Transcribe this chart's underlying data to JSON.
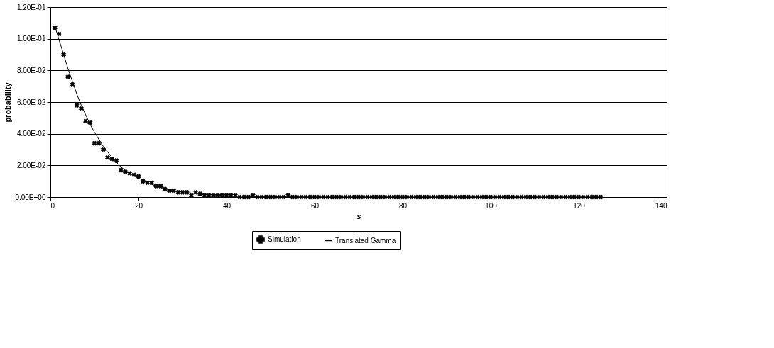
{
  "chart_data": {
    "type": "scatter",
    "xlabel": "s",
    "ylabel": "probability",
    "xlim": [
      0,
      140
    ],
    "xticks": [
      0,
      20,
      40,
      60,
      80,
      100,
      120,
      140
    ],
    "ylim": [
      0,
      0.12
    ],
    "yticks": [
      {
        "value": 0,
        "label": "0.00E+00"
      },
      {
        "value": 0.02,
        "label": "2.00E-02"
      },
      {
        "value": 0.04,
        "label": "4.00E-02"
      },
      {
        "value": 0.06,
        "label": "6.00E-02"
      },
      {
        "value": 0.08,
        "label": "8.00E-02"
      },
      {
        "value": 0.1,
        "label": "1.00E-01"
      },
      {
        "value": 0.12,
        "label": "1.20E-01"
      }
    ],
    "grid": "y",
    "legend": "bottom",
    "series": [
      {
        "name": "Simulation",
        "marker": "cross",
        "color": "#000000",
        "x": [
          1,
          2,
          3,
          4,
          5,
          6,
          7,
          8,
          9,
          10,
          11,
          12,
          13,
          14,
          15,
          16,
          17,
          18,
          19,
          20,
          21,
          22,
          23,
          24,
          25,
          26,
          27,
          28,
          29,
          30,
          31,
          32,
          33,
          34,
          35,
          36,
          37,
          38,
          39,
          40,
          41,
          42,
          43,
          44,
          45,
          46,
          47,
          48,
          49,
          50,
          51,
          52,
          53,
          54,
          55,
          56,
          57,
          58,
          59,
          60,
          61,
          62,
          63,
          64,
          65,
          66,
          67,
          68,
          69,
          70,
          71,
          72,
          73,
          74,
          75,
          76,
          77,
          78,
          79,
          80,
          81,
          82,
          83,
          84,
          85,
          86,
          87,
          88,
          89,
          90,
          91,
          92,
          93,
          94,
          95,
          96,
          97,
          98,
          99,
          100,
          101,
          102,
          103,
          104,
          105,
          106,
          107,
          108,
          109,
          110,
          111,
          112,
          113,
          114,
          115,
          116,
          117,
          118,
          119,
          120,
          121,
          122,
          123,
          124,
          125
        ],
        "values": [
          0.107,
          0.103,
          0.09,
          0.076,
          0.071,
          0.058,
          0.056,
          0.048,
          0.047,
          0.034,
          0.034,
          0.03,
          0.025,
          0.024,
          0.023,
          0.017,
          0.016,
          0.015,
          0.014,
          0.013,
          0.01,
          0.009,
          0.009,
          0.007,
          0.007,
          0.005,
          0.004,
          0.004,
          0.003,
          0.003,
          0.003,
          0.001,
          0.003,
          0.002,
          0.001,
          0.001,
          0.001,
          0.001,
          0.001,
          0.001,
          0.001,
          0.001,
          0,
          0,
          0,
          0.001,
          0,
          0,
          0,
          0,
          0,
          0,
          0,
          0.001,
          0,
          0,
          0,
          0,
          0,
          0,
          0,
          0,
          0,
          0,
          0,
          0,
          0,
          0,
          0,
          0,
          0,
          0,
          0,
          0,
          0,
          0,
          0,
          0,
          0,
          0,
          0,
          0,
          0,
          0,
          0,
          0,
          0,
          0,
          0,
          0,
          0,
          0,
          0,
          0,
          0,
          0,
          0,
          0,
          0,
          0,
          0,
          0,
          0,
          0,
          0,
          0,
          0,
          0,
          0,
          0,
          0,
          0,
          0,
          0,
          0,
          0,
          0,
          0,
          0,
          0,
          0,
          0,
          0,
          0,
          0
        ]
      },
      {
        "name": "Translated Gamma",
        "type": "line",
        "marker": "none",
        "line_style": "solid",
        "color": "#000000",
        "x": [
          1,
          2,
          3,
          4,
          5,
          6,
          7,
          8,
          9,
          10,
          12,
          14,
          16,
          18,
          20,
          22,
          25,
          28,
          32,
          36,
          40,
          45,
          50,
          60,
          80,
          100,
          125
        ],
        "values": [
          0.108,
          0.099,
          0.09,
          0.081,
          0.073,
          0.065,
          0.058,
          0.052,
          0.046,
          0.041,
          0.032,
          0.025,
          0.019,
          0.015,
          0.012,
          0.009,
          0.006,
          0.004,
          0.0025,
          0.0015,
          0.0008,
          0.0004,
          0.0002,
          0,
          0,
          0,
          0
        ]
      }
    ]
  }
}
